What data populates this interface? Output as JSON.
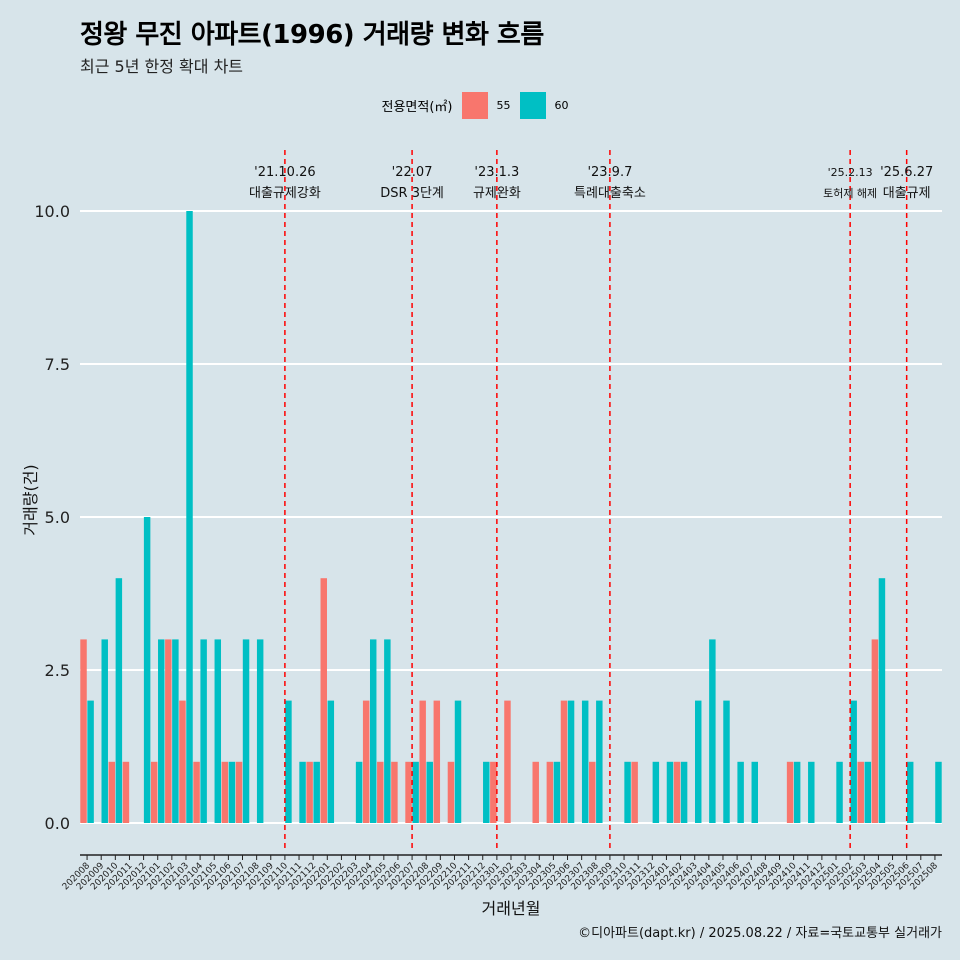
{
  "title": "정왕 무진 아파트(1996) 거래량 변화 흐름",
  "subtitle": "최근 5년 한정 확대 차트",
  "legend": {
    "title": "전용면적(㎡)",
    "items": [
      {
        "label": "55",
        "color": "#F8766D"
      },
      {
        "label": "60",
        "color": "#00BFC4"
      }
    ]
  },
  "caption": "©디아파트(dapt.kr) / 2025.08.22 / 자료=국토교통부 실거래가",
  "chart_data": {
    "type": "bar",
    "xlabel": "거래년월",
    "ylabel": "거래량(건)",
    "ylim": [
      0,
      10
    ],
    "yticks": [
      "0.0",
      "2.5",
      "5.0",
      "7.5",
      "10.0"
    ],
    "months": [
      "202008",
      "202009",
      "202010",
      "202011",
      "202012",
      "202101",
      "202102",
      "202103",
      "202104",
      "202105",
      "202106",
      "202107",
      "202108",
      "202109",
      "202110",
      "202111",
      "202112",
      "202201",
      "202202",
      "202203",
      "202204",
      "202205",
      "202206",
      "202207",
      "202208",
      "202209",
      "202210",
      "202211",
      "202212",
      "202301",
      "202302",
      "202303",
      "202304",
      "202305",
      "202306",
      "202307",
      "202308",
      "202309",
      "202310",
      "202311",
      "202312",
      "202401",
      "202402",
      "202403",
      "202404",
      "202405",
      "202406",
      "202407",
      "202408",
      "202409",
      "202410",
      "202411",
      "202412",
      "202501",
      "202502",
      "202503",
      "202504",
      "202505",
      "202506",
      "202507",
      "202508"
    ],
    "series": [
      {
        "name": "55",
        "color": "#F8766D",
        "values": [
          3,
          0,
          1,
          1,
          0,
          1,
          3,
          2,
          1,
          0,
          1,
          1,
          0,
          0,
          0,
          0,
          1,
          4,
          0,
          0,
          2,
          1,
          1,
          1,
          2,
          2,
          1,
          0,
          0,
          1,
          2,
          0,
          1,
          1,
          2,
          0,
          1,
          0,
          0,
          1,
          0,
          0,
          1,
          0,
          0,
          0,
          0,
          0,
          0,
          0,
          1,
          0,
          0,
          0,
          0,
          1,
          3,
          0,
          0,
          0,
          0
        ]
      },
      {
        "name": "60",
        "color": "#00BFC4",
        "values": [
          2,
          3,
          4,
          0,
          5,
          3,
          3,
          10,
          3,
          3,
          1,
          3,
          3,
          0,
          2,
          1,
          1,
          2,
          0,
          1,
          3,
          3,
          0,
          1,
          1,
          0,
          2,
          0,
          1,
          0,
          0,
          0,
          0,
          1,
          2,
          2,
          2,
          0,
          1,
          0,
          1,
          1,
          1,
          2,
          3,
          2,
          1,
          1,
          0,
          0,
          1,
          1,
          0,
          1,
          2,
          1,
          4,
          0,
          1,
          0,
          1
        ]
      }
    ],
    "events": [
      {
        "date": "'21.10.26",
        "label": "대출규제강화",
        "month": "202110"
      },
      {
        "date": "'22.07",
        "label": "DSR 3단계",
        "month": "202207"
      },
      {
        "date": "'23.1.3",
        "label": "규제완화",
        "month": "202301"
      },
      {
        "date": "'23.9.7",
        "label": "특례대출축소",
        "month": "202309"
      },
      {
        "date": "'25.2.13",
        "label": "토허제 해제",
        "month": "202502"
      },
      {
        "date": "'25.6.27",
        "label": "대출규제",
        "month": "202506"
      }
    ]
  }
}
